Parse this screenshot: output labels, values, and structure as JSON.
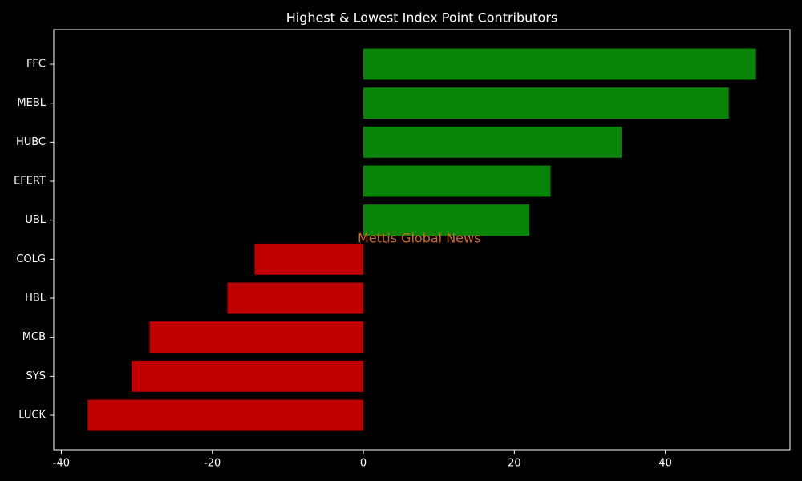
{
  "chart_data": {
    "type": "barh",
    "title": "Highest & Lowest Index Point Contributors",
    "categories": [
      "FFC",
      "MEBL",
      "HUBC",
      "EFERT",
      "UBL",
      "COLG",
      "HBL",
      "MCB",
      "SYS",
      "LUCK"
    ],
    "values": [
      52.0,
      48.4,
      34.2,
      24.8,
      22.0,
      -14.4,
      -18.0,
      -28.3,
      -30.7,
      -36.5
    ],
    "colors": [
      "#088408",
      "#088408",
      "#088408",
      "#088408",
      "#088408",
      "#c00000",
      "#c00000",
      "#c00000",
      "#c00000",
      "#c00000"
    ],
    "xlim": [
      -41.0,
      56.5
    ],
    "xticks": [
      -40,
      -20,
      0,
      20,
      40
    ],
    "annotation": "Mettis Global News"
  }
}
